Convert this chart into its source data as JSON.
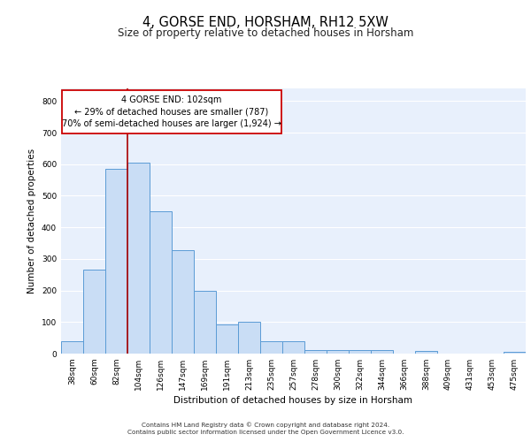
{
  "title": "4, GORSE END, HORSHAM, RH12 5XW",
  "subtitle": "Size of property relative to detached houses in Horsham",
  "xlabel": "Distribution of detached houses by size in Horsham",
  "ylabel": "Number of detached properties",
  "categories": [
    "38sqm",
    "60sqm",
    "82sqm",
    "104sqm",
    "126sqm",
    "147sqm",
    "169sqm",
    "191sqm",
    "213sqm",
    "235sqm",
    "257sqm",
    "278sqm",
    "300sqm",
    "322sqm",
    "344sqm",
    "366sqm",
    "388sqm",
    "409sqm",
    "431sqm",
    "453sqm",
    "475sqm"
  ],
  "values": [
    38,
    265,
    585,
    605,
    450,
    328,
    198,
    92,
    102,
    38,
    38,
    12,
    12,
    10,
    10,
    0,
    8,
    0,
    0,
    0,
    5
  ],
  "bar_color": "#c9ddf5",
  "bar_edge_color": "#5b9bd5",
  "bar_width": 1.0,
  "red_line_index": 2.5,
  "annotation_line1": "4 GORSE END: 102sqm",
  "annotation_line2": "← 29% of detached houses are smaller (787)",
  "annotation_line3": "70% of semi-detached houses are larger (1,924) →",
  "ylim": [
    0,
    840
  ],
  "yticks": [
    0,
    100,
    200,
    300,
    400,
    500,
    600,
    700,
    800
  ],
  "background_color": "#e8f0fc",
  "grid_color": "#ffffff",
  "footer_line1": "Contains HM Land Registry data © Crown copyright and database right 2024.",
  "footer_line2": "Contains public sector information licensed under the Open Government Licence v3.0."
}
